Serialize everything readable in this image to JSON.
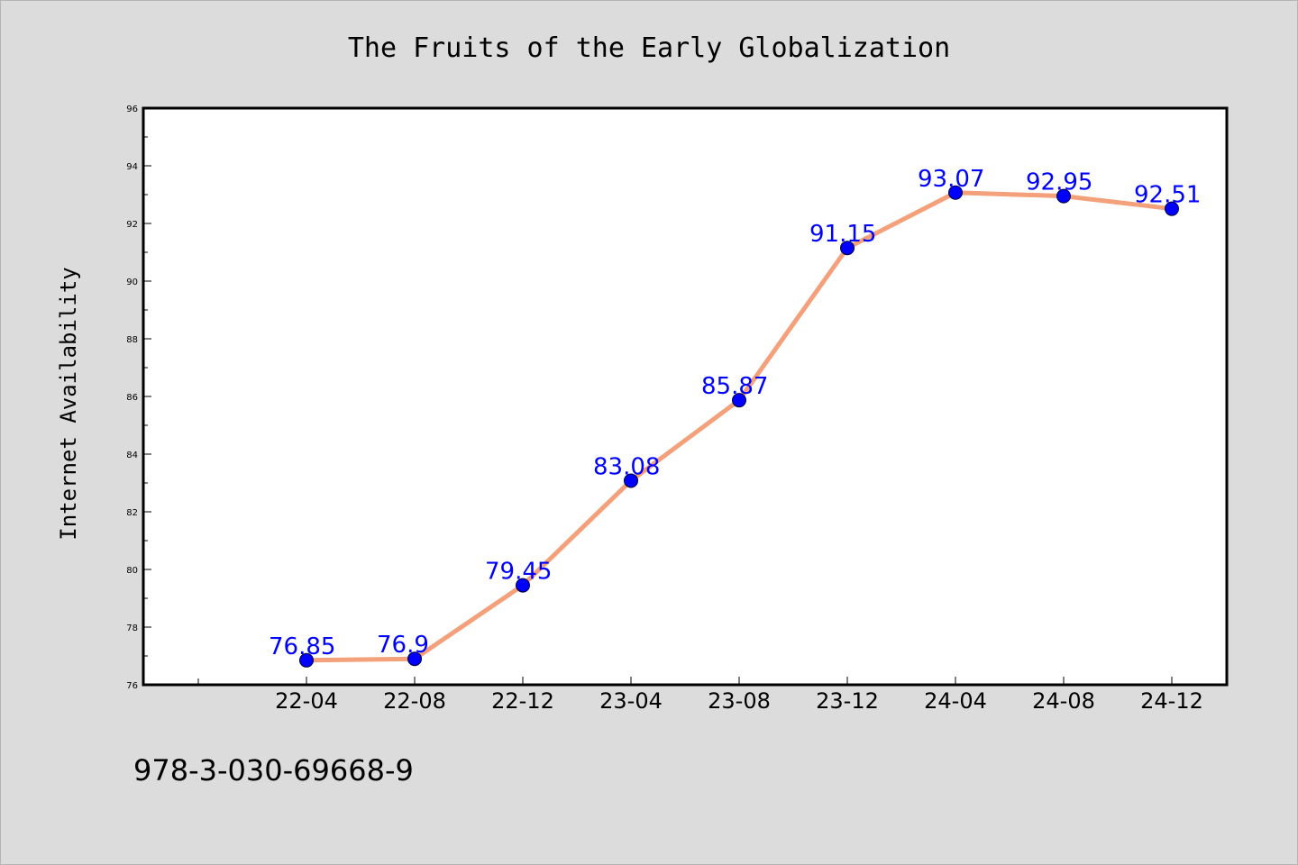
{
  "chart_data": {
    "type": "line",
    "title": "The Fruits of the Early Globalization",
    "xlabel": "",
    "ylabel": "Internet Availability",
    "categories": [
      "22-04",
      "22-08",
      "22-12",
      "23-04",
      "23-08",
      "23-12",
      "24-04",
      "24-08",
      "24-12"
    ],
    "series": [
      {
        "values": [
          76.85,
          76.9,
          79.45,
          83.08,
          85.87,
          91.15,
          93.07,
          92.95,
          92.51
        ],
        "data_labels": [
          "76.85",
          "76.9",
          "79.45",
          "83.08",
          "85.87",
          "91.15",
          "93.07",
          "92.95",
          "92.51"
        ]
      }
    ],
    "ylim": [
      76,
      96
    ],
    "yticks": [
      76,
      78,
      80,
      82,
      84,
      86,
      88,
      90,
      92,
      94,
      96
    ],
    "grid": false,
    "legend": "none",
    "colors": {
      "line": "#f4a07a",
      "marker": "#0000ff",
      "data_label": "#0000ff",
      "background": "#dcdcdc",
      "plot_area": "#ffffff"
    }
  },
  "footer": {
    "isbn": "978-3-030-69668-9"
  }
}
